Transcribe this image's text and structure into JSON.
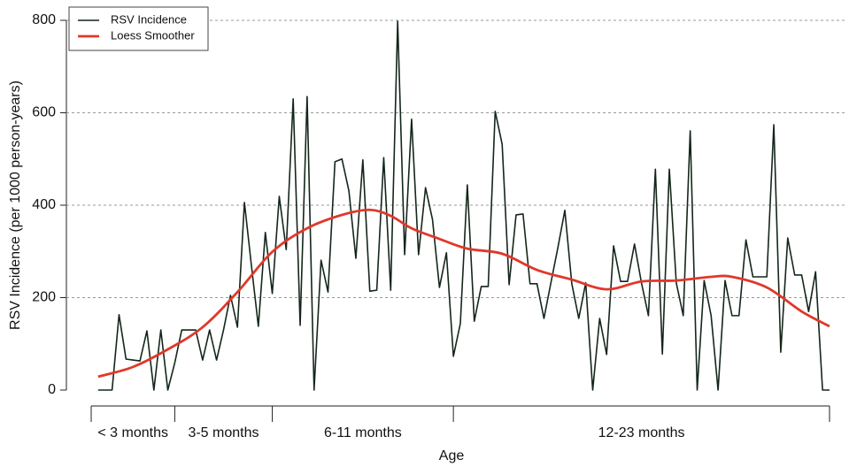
{
  "chart_data": {
    "type": "line",
    "xlabel": "Age",
    "ylabel": "RSV Incidence (per 1000 person-years)",
    "xlim": [
      0,
      106
    ],
    "ylim": [
      0,
      800
    ],
    "yticks": [
      0,
      200,
      400,
      600,
      800
    ],
    "grid": true,
    "legend": "top-left",
    "age_groups": [
      {
        "label": "< 3 months",
        "start": 0,
        "end": 12
      },
      {
        "label": "3-5 months",
        "start": 12,
        "end": 26
      },
      {
        "label": "6-11 months",
        "start": 26,
        "end": 52
      },
      {
        "label": "12-23 months",
        "start": 52,
        "end": 106
      }
    ],
    "series": [
      {
        "name": "RSV Incidence",
        "color": "#14261a",
        "width": 1.6,
        "x": [
          1,
          2,
          3,
          4,
          5,
          6,
          7,
          8,
          9,
          10,
          11,
          12,
          13,
          14,
          15,
          16,
          17,
          18,
          19,
          20,
          21,
          22,
          23,
          24,
          25,
          26,
          27,
          28,
          29,
          30,
          31,
          32,
          33,
          34,
          35,
          36,
          37,
          38,
          39,
          40,
          41,
          42,
          43,
          44,
          45,
          46,
          47,
          48,
          49,
          50,
          51,
          52,
          53,
          54,
          55,
          56,
          57,
          58,
          59,
          60,
          61,
          62,
          63,
          64,
          65,
          66,
          67,
          68,
          69,
          70,
          71,
          72,
          73,
          74,
          75,
          76,
          77,
          78,
          79,
          80,
          81,
          82,
          83,
          84,
          85,
          86,
          87,
          88,
          89,
          90,
          91,
          92,
          93,
          94,
          95,
          96,
          97,
          98,
          99,
          100,
          101,
          102,
          103,
          104,
          105,
          106
        ],
        "values": [
          0,
          0,
          0,
          163,
          67,
          65,
          63,
          128,
          0,
          130,
          0,
          59,
          130,
          130,
          130,
          65,
          130,
          65,
          130,
          205,
          136,
          406,
          270,
          138,
          341,
          209,
          419,
          304,
          630,
          140,
          635,
          0,
          281,
          212,
          494,
          500,
          431,
          285,
          498,
          214,
          216,
          503,
          216,
          798,
          293,
          586,
          293,
          438,
          369,
          222,
          297,
          73,
          144,
          444,
          149,
          224,
          224,
          603,
          532,
          228,
          379,
          381,
          230,
          230,
          155,
          232,
          308,
          389,
          230,
          155,
          232,
          0,
          155,
          77,
          312,
          235,
          235,
          316,
          232,
          161,
          478,
          78,
          478,
          232,
          161,
          561,
          0,
          237,
          161,
          0,
          237,
          161,
          161,
          325,
          245,
          245,
          245,
          574,
          82,
          329,
          249,
          249,
          170,
          256,
          0,
          0
        ]
      },
      {
        "name": "Loess Smoother",
        "color": "#e0382b",
        "width": 2.8,
        "x": [
          1,
          6,
          11,
          16,
          21,
          26,
          31,
          36,
          40,
          43,
          46,
          50,
          54,
          59,
          64,
          69,
          74,
          79,
          84,
          89,
          92,
          97,
          102,
          106
        ],
        "values": [
          29,
          50,
          88,
          136,
          212,
          299,
          350,
          379,
          390,
          377,
          350,
          327,
          306,
          295,
          260,
          239,
          218,
          235,
          237,
          245,
          245,
          222,
          170,
          138
        ]
      }
    ]
  }
}
